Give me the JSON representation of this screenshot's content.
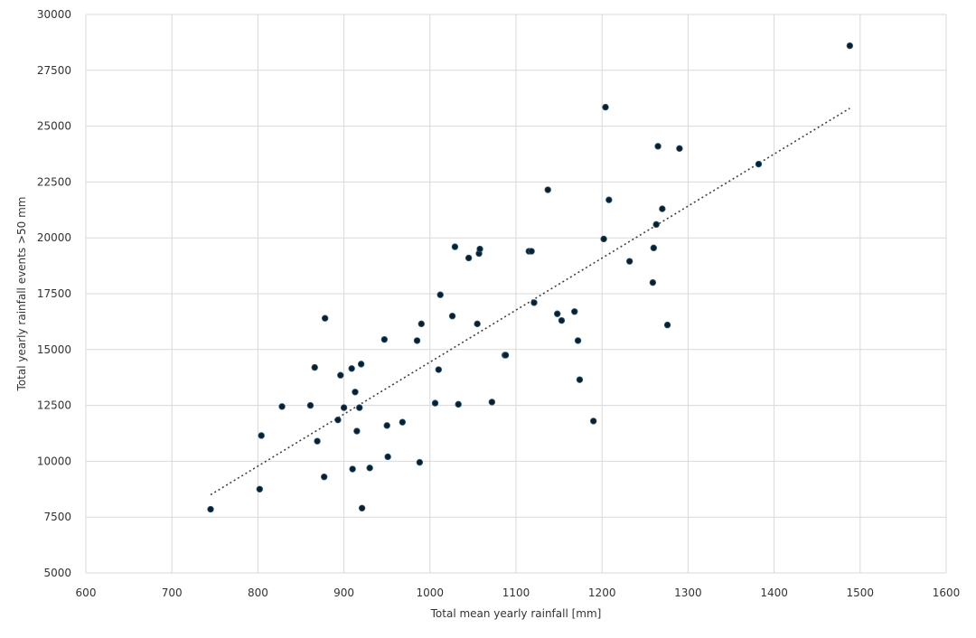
{
  "chart_data": {
    "type": "scatter",
    "title": "",
    "xlabel": "Total mean yearly rainfall [mm]",
    "ylabel": "Total yearly rainfall events >50 mm",
    "xlim": [
      600,
      1600
    ],
    "ylim": [
      5000,
      30000
    ],
    "xticks": [
      600,
      700,
      800,
      900,
      1000,
      1100,
      1200,
      1300,
      1400,
      1500,
      1600
    ],
    "yticks": [
      5000,
      7500,
      10000,
      12500,
      15000,
      17500,
      20000,
      22500,
      25000,
      27500,
      30000
    ],
    "grid": true,
    "colors": {
      "point": "#0d1f2d",
      "trend": "#404040",
      "grid": "#d9d9d9"
    },
    "trendline": {
      "type": "linear",
      "x": [
        745,
        1488
      ],
      "y": [
        8500,
        25800
      ]
    },
    "series": [
      {
        "points": [
          [
            745,
            7850
          ],
          [
            802,
            8750
          ],
          [
            804,
            11150
          ],
          [
            828,
            12450
          ],
          [
            861,
            12500
          ],
          [
            866,
            14200
          ],
          [
            869,
            10900
          ],
          [
            877,
            9300
          ],
          [
            878,
            16400
          ],
          [
            893,
            11850
          ],
          [
            896,
            13850
          ],
          [
            900,
            12400
          ],
          [
            909,
            14150
          ],
          [
            910,
            9650
          ],
          [
            913,
            13100
          ],
          [
            915,
            11350
          ],
          [
            918,
            12400
          ],
          [
            920,
            14350
          ],
          [
            921,
            7900
          ],
          [
            930,
            9700
          ],
          [
            947,
            15450
          ],
          [
            950,
            11600
          ],
          [
            951,
            10200
          ],
          [
            968,
            11750
          ],
          [
            985,
            15400
          ],
          [
            988,
            9950
          ],
          [
            990,
            16150
          ],
          [
            1006,
            12600
          ],
          [
            1010,
            14100
          ],
          [
            1012,
            17450
          ],
          [
            1026,
            16500
          ],
          [
            1029,
            19600
          ],
          [
            1033,
            12550
          ],
          [
            1045,
            19100
          ],
          [
            1055,
            16150
          ],
          [
            1057,
            19300
          ],
          [
            1058,
            19500
          ],
          [
            1072,
            12650
          ],
          [
            1087,
            14750
          ],
          [
            1088,
            14750
          ],
          [
            1115,
            19400
          ],
          [
            1118,
            19400
          ],
          [
            1121,
            17100
          ],
          [
            1137,
            22150
          ],
          [
            1148,
            16600
          ],
          [
            1153,
            16300
          ],
          [
            1168,
            16700
          ],
          [
            1172,
            15400
          ],
          [
            1174,
            13650
          ],
          [
            1190,
            11800
          ],
          [
            1202,
            19950
          ],
          [
            1204,
            25850
          ],
          [
            1208,
            21700
          ],
          [
            1232,
            18950
          ],
          [
            1259,
            18000
          ],
          [
            1260,
            19550
          ],
          [
            1263,
            20600
          ],
          [
            1265,
            24100
          ],
          [
            1270,
            21300
          ],
          [
            1276,
            16100
          ],
          [
            1290,
            24000
          ],
          [
            1382,
            23300
          ],
          [
            1488,
            28600
          ]
        ]
      }
    ]
  }
}
